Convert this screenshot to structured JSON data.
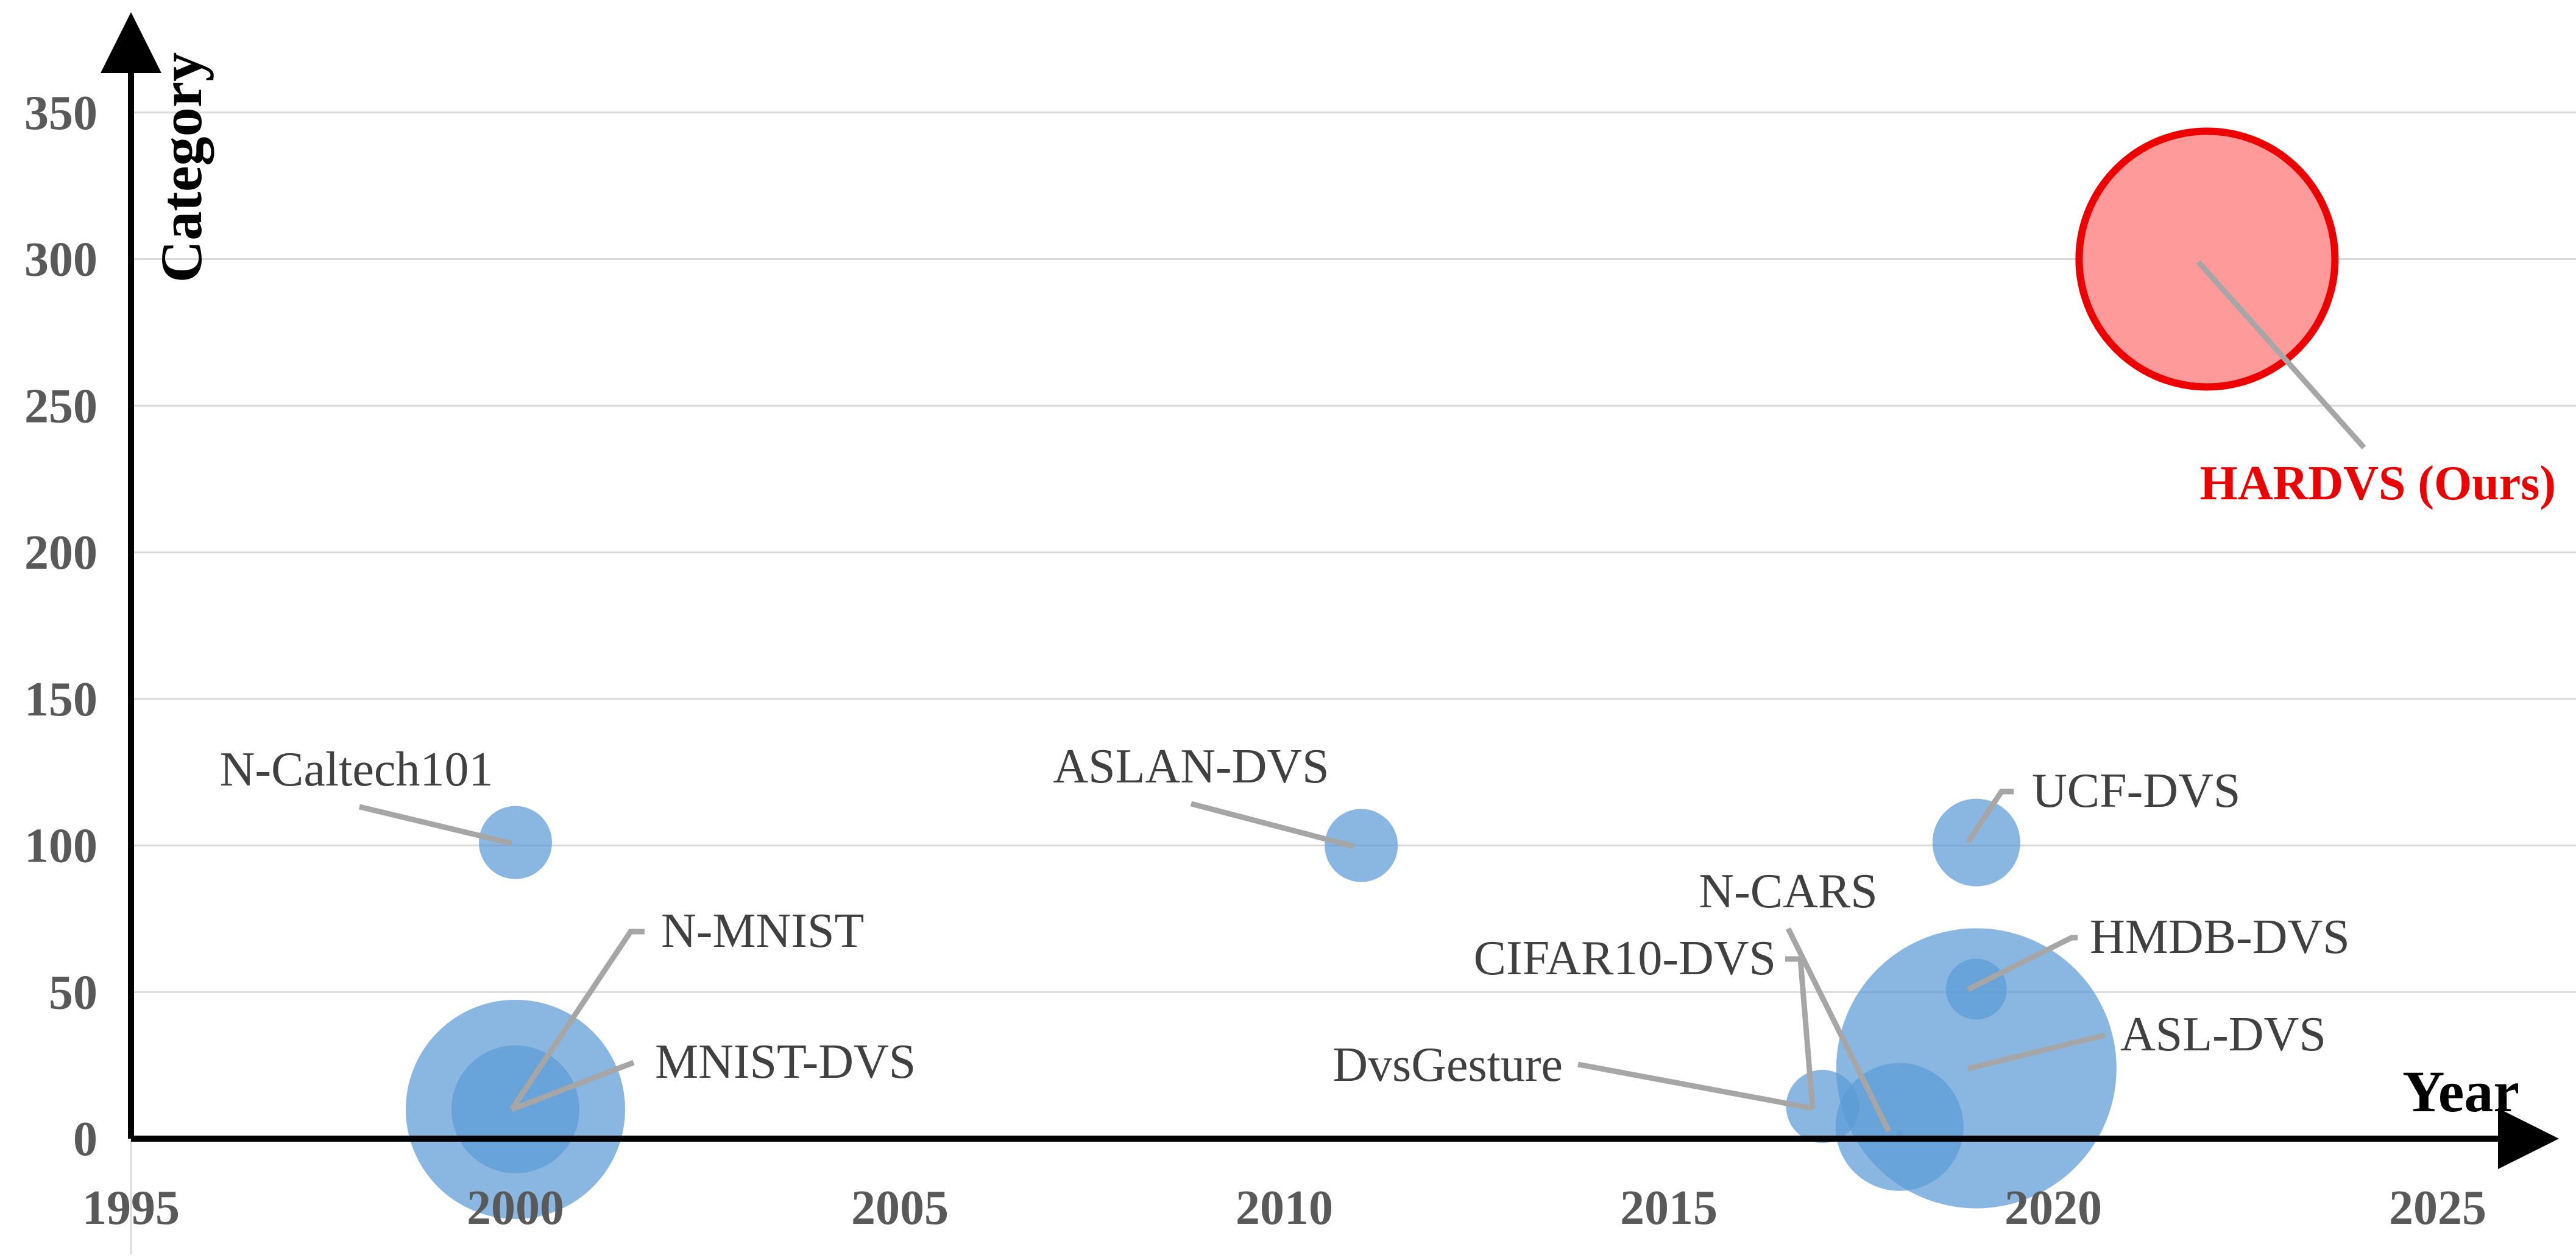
{
  "chart_data": {
    "type": "scatter",
    "xlabel": "Year",
    "ylabel": "Category",
    "xlim": [
      1995,
      2026.5
    ],
    "ylim": [
      0,
      375
    ],
    "xticks": [
      1995,
      2000,
      2005,
      2010,
      2015,
      2020,
      2025
    ],
    "yticks": [
      0,
      50,
      100,
      150,
      200,
      250,
      300,
      350
    ],
    "grid": "horizontal",
    "colors": {
      "bubble": "#5b9bd5",
      "highlight_fill": "#ff9a9a",
      "highlight_stroke": "#ee0000",
      "leader": "#a6a6a6"
    },
    "points": [
      {
        "name": "N-MNIST",
        "x": 2000,
        "y": 10,
        "size": 1.8
      },
      {
        "name": "MNIST-DVS",
        "x": 2000,
        "y": 10,
        "size": 1.05
      },
      {
        "name": "N-Caltech101",
        "x": 2000,
        "y": 101,
        "size": 0.6
      },
      {
        "name": "ASLAN-DVS",
        "x": 2011,
        "y": 100,
        "size": 0.6
      },
      {
        "name": "DvsGesture",
        "x": 2017,
        "y": 11,
        "size": 0.6
      },
      {
        "name": "CIFAR10-DVS",
        "x": 2018,
        "y": 4,
        "size": 1.05
      },
      {
        "name": "N-CARS",
        "x": 2018,
        "y": 2,
        "size": 0.05
      },
      {
        "name": "ASL-DVS",
        "x": 2019,
        "y": 24,
        "size": 2.3
      },
      {
        "name": "UCF-DVS",
        "x": 2019,
        "y": 101,
        "size": 0.72
      },
      {
        "name": "HMDB-DVS",
        "x": 2019,
        "y": 51,
        "size": 0.5
      },
      {
        "name": "HARDVS (Ours)",
        "x": 2022,
        "y": 300,
        "size": 2.1,
        "highlight": true
      }
    ]
  }
}
